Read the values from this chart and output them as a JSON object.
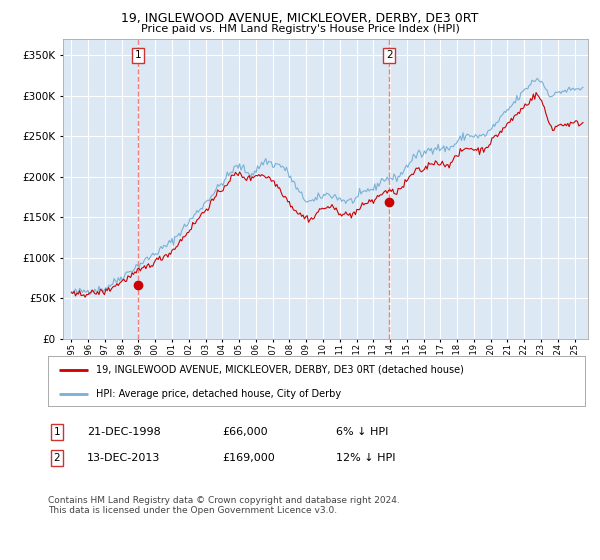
{
  "title": "19, INGLEWOOD AVENUE, MICKLEOVER, DERBY, DE3 0RT",
  "subtitle": "Price paid vs. HM Land Registry's House Price Index (HPI)",
  "legend_line1": "19, INGLEWOOD AVENUE, MICKLEOVER, DERBY, DE3 0RT (detached house)",
  "legend_line2": "HPI: Average price, detached house, City of Derby",
  "marker1_date": "21-DEC-1998",
  "marker1_price": 66000,
  "marker1_label": "6% ↓ HPI",
  "marker2_date": "13-DEC-2013",
  "marker2_price": 169000,
  "marker2_label": "12% ↓ HPI",
  "footer": "Contains HM Land Registry data © Crown copyright and database right 2024.\nThis data is licensed under the Open Government Licence v3.0.",
  "background_color": "#dce9f5",
  "grid_color": "#ffffff",
  "red_line_color": "#cc0000",
  "blue_line_color": "#7ab0d4",
  "dashed_line_color": "#f08080",
  "ylim": [
    0,
    370000
  ],
  "yticks": [
    0,
    50000,
    100000,
    150000,
    200000,
    250000,
    300000,
    350000
  ],
  "marker1_year": 1998.96,
  "marker2_year": 2013.96
}
